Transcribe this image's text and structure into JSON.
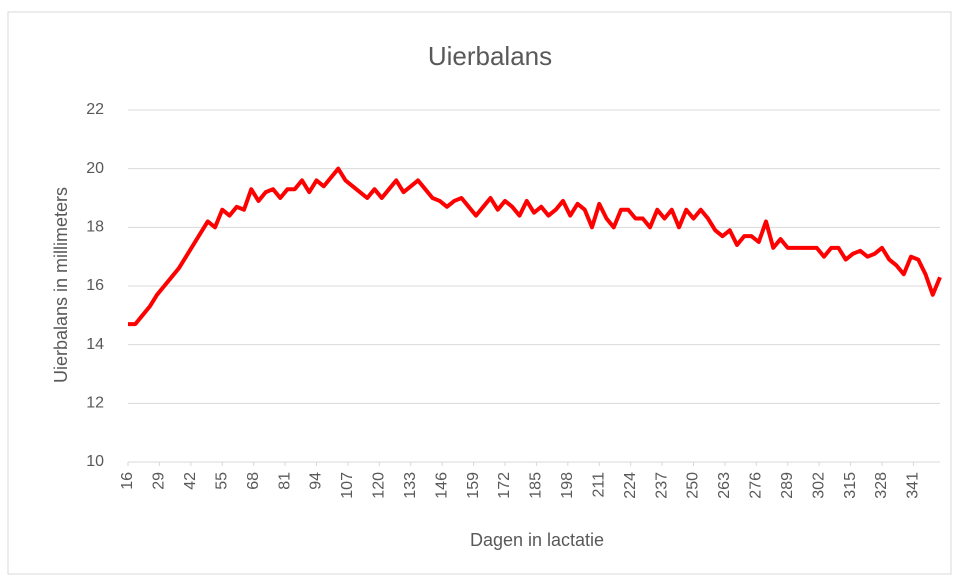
{
  "chart_data": {
    "type": "line",
    "title": "Uierbalans",
    "x_label": "Dagen in lactatie",
    "y_label": "Uierbalans in millimeters",
    "x": [
      16,
      19,
      22,
      25,
      28,
      31,
      34,
      37,
      40,
      43,
      46,
      49,
      52,
      55,
      58,
      61,
      64,
      67,
      70,
      73,
      76,
      79,
      82,
      85,
      88,
      91,
      94,
      97,
      100,
      103,
      106,
      109,
      112,
      115,
      118,
      121,
      124,
      127,
      130,
      133,
      136,
      139,
      142,
      145,
      148,
      151,
      154,
      157,
      160,
      163,
      166,
      169,
      172,
      175,
      178,
      181,
      184,
      187,
      190,
      193,
      196,
      199,
      202,
      205,
      208,
      211,
      214,
      217,
      220,
      223,
      226,
      229,
      232,
      235,
      238,
      241,
      244,
      247,
      250,
      253,
      256,
      259,
      262,
      265,
      268,
      271,
      274,
      277,
      280,
      283,
      286,
      289,
      292,
      295,
      298,
      301,
      304,
      307,
      310,
      313,
      316,
      319,
      322,
      325,
      328,
      331,
      334,
      337,
      340,
      343,
      346,
      349,
      352
    ],
    "series": [
      {
        "color": "#ff0000",
        "values": [
          14.7,
          14.7,
          15.0,
          15.3,
          15.7,
          16.0,
          16.3,
          16.6,
          17.0,
          17.4,
          17.8,
          18.2,
          18.0,
          18.6,
          18.4,
          18.7,
          18.6,
          19.3,
          18.9,
          19.2,
          19.3,
          19.0,
          19.3,
          19.3,
          19.6,
          19.2,
          19.6,
          19.4,
          19.7,
          20.0,
          19.6,
          19.4,
          19.2,
          19.0,
          19.3,
          19.0,
          19.3,
          19.6,
          19.2,
          19.4,
          19.6,
          19.3,
          19.0,
          18.9,
          18.7,
          18.9,
          19.0,
          18.7,
          18.4,
          18.7,
          19.0,
          18.6,
          18.9,
          18.7,
          18.4,
          18.9,
          18.5,
          18.7,
          18.4,
          18.6,
          18.9,
          18.4,
          18.8,
          18.6,
          18.0,
          18.8,
          18.3,
          18.0,
          18.6,
          18.6,
          18.3,
          18.3,
          18.0,
          18.6,
          18.3,
          18.6,
          18.0,
          18.6,
          18.3,
          18.6,
          18.3,
          17.9,
          17.7,
          17.9,
          17.4,
          17.7,
          17.7,
          17.5,
          18.2,
          17.3,
          17.6,
          17.3,
          17.3,
          17.3,
          17.3,
          17.3,
          17.0,
          17.3,
          17.3,
          16.9,
          17.1,
          17.2,
          17.0,
          17.1,
          17.3,
          16.9,
          16.7,
          16.4,
          17.0,
          16.9,
          16.4,
          15.7,
          16.3
        ]
      }
    ],
    "xlim": [
      16,
      352
    ],
    "xticks": [
      16,
      29,
      42,
      55,
      68,
      81,
      94,
      107,
      120,
      133,
      146,
      159,
      172,
      185,
      198,
      211,
      224,
      237,
      250,
      263,
      276,
      289,
      302,
      315,
      328,
      341
    ],
    "ylim": [
      10,
      22
    ],
    "yticks": [
      10,
      12,
      14,
      16,
      18,
      20,
      22
    ],
    "grid": true
  }
}
